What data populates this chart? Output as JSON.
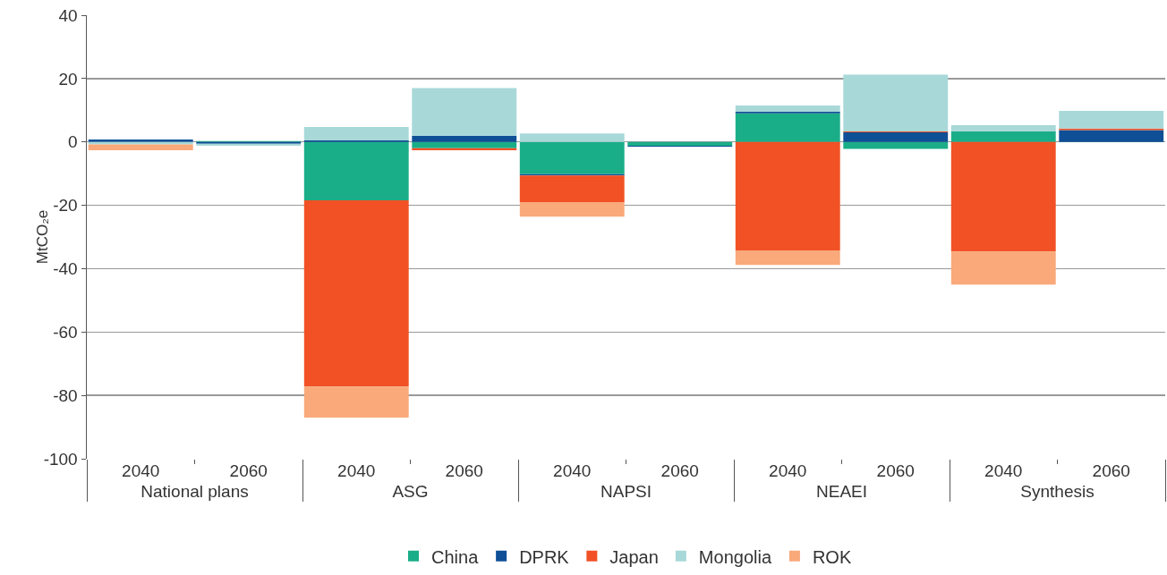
{
  "chart_data": {
    "type": "bar",
    "stacked": true,
    "ylabel": "MtCO₂e",
    "categories": [
      "2040",
      "2060",
      "2040",
      "2060",
      "2040",
      "2060",
      "2040",
      "2060",
      "2040",
      "2060"
    ],
    "annotations": [
      "National plans",
      "ASG",
      "NAPSI",
      "NEAEI",
      "Synthesis"
    ],
    "series": [
      {
        "name": "China",
        "color": "#1aae88",
        "values": [
          0,
          0.3,
          -18.4,
          -2,
          -10.2,
          -1.2,
          9,
          -2.2,
          3.4,
          0
        ]
      },
      {
        "name": "DPRK",
        "color": "#0e4f96",
        "values": [
          0.8,
          -0.6,
          0.5,
          2,
          -0.4,
          -0.3,
          0.5,
          3,
          0,
          3.7
        ]
      },
      {
        "name": "Japan",
        "color": "#f15125",
        "values": [
          0,
          0,
          -58.8,
          -0.6,
          -8.4,
          0,
          -34.2,
          0.3,
          -34.6,
          0.5
        ]
      },
      {
        "name": "Mongolia",
        "color": "#a8d8d8",
        "values": [
          -0.8,
          -0.6,
          4.2,
          15,
          2.7,
          0,
          2,
          17.9,
          1.9,
          5.6
        ]
      },
      {
        "name": "ROK",
        "color": "#f9a97a",
        "values": [
          -1.8,
          0,
          -9.8,
          0,
          -4.6,
          0,
          -4.6,
          0,
          -10.4,
          0
        ]
      }
    ],
    "ylim": [
      -100,
      40
    ],
    "yticks": [
      -100,
      -80,
      -60,
      -40,
      -20,
      0,
      20,
      40
    ],
    "grid": "y",
    "legend": "bottom"
  }
}
